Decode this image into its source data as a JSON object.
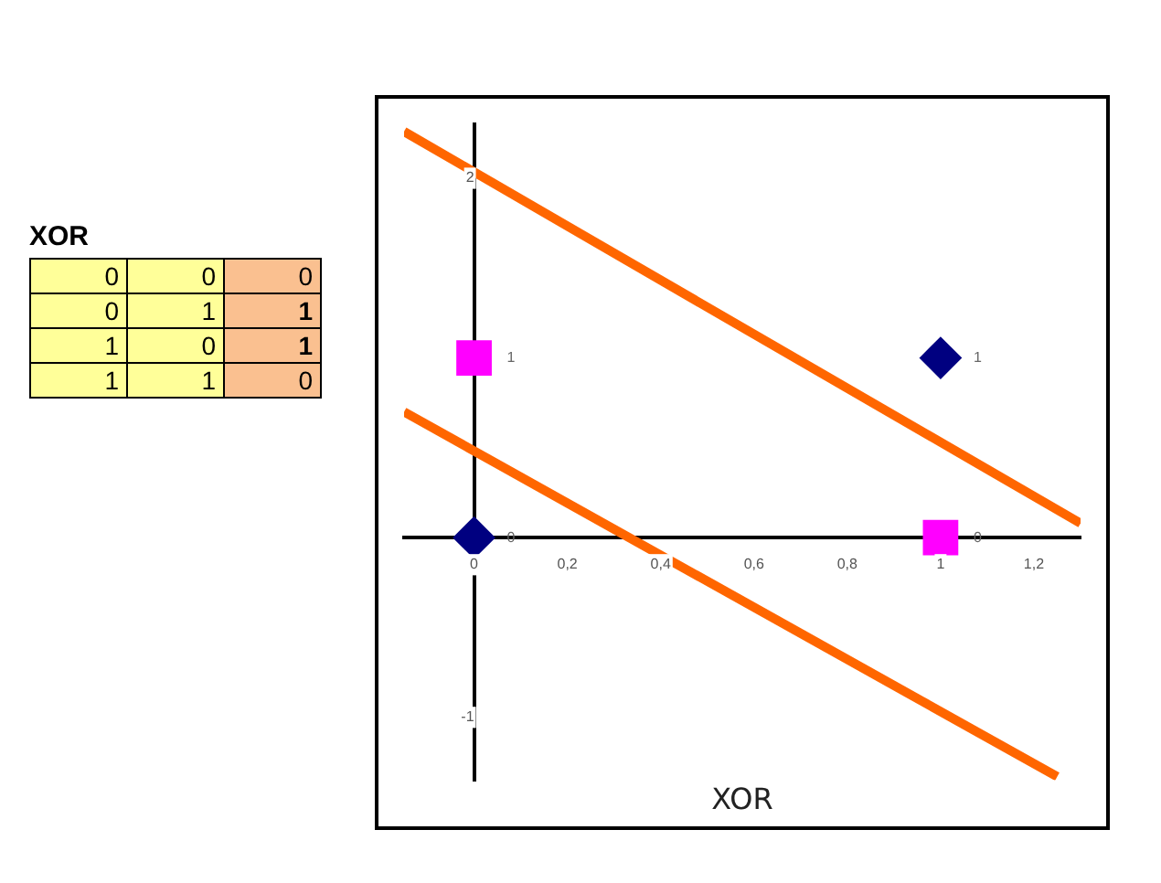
{
  "chart_data": [
    {
      "type": "other",
      "title": "XOR",
      "annotations": [
        "0",
        "0",
        "0",
        "0",
        "1",
        "1",
        "1",
        "0",
        "1",
        "1",
        "1",
        "0"
      ]
    },
    {
      "type": "scatter",
      "title": "XOR",
      "xlim": [
        -0.15,
        1.3
      ],
      "ylim": [
        -1.35,
        2.3
      ],
      "xticks": [
        0,
        {
          "value": 0.2,
          "label": "0,2"
        },
        {
          "value": 0.4,
          "label": "0,4"
        },
        {
          "value": 0.6,
          "label": "0,6"
        },
        {
          "value": 0.8,
          "label": "0,8"
        },
        1,
        {
          "value": 1.2,
          "label": "1,2"
        }
      ],
      "yticks": [
        -1,
        2
      ],
      "grid": false,
      "legend": false,
      "series": [
        {
          "color": "#000080",
          "marker": "diamond",
          "x": [
            0,
            1
          ],
          "values": [
            0,
            1
          ],
          "value_labels": [
            "0",
            "1"
          ]
        },
        {
          "color": "#ff00ff",
          "marker": "square",
          "x": [
            0,
            1
          ],
          "values": [
            1,
            0
          ],
          "value_labels": [
            "1",
            "0"
          ]
        },
        {
          "type": "line",
          "color": "#ff6600",
          "marker": "none",
          "x": [
            -0.15,
            1.3
          ],
          "values": [
            2.26,
            0.08
          ]
        },
        {
          "type": "line",
          "color": "#ff6600",
          "marker": "none",
          "x": [
            -0.15,
            1.25
          ],
          "values": [
            0.7,
            -1.33
          ]
        }
      ]
    }
  ]
}
